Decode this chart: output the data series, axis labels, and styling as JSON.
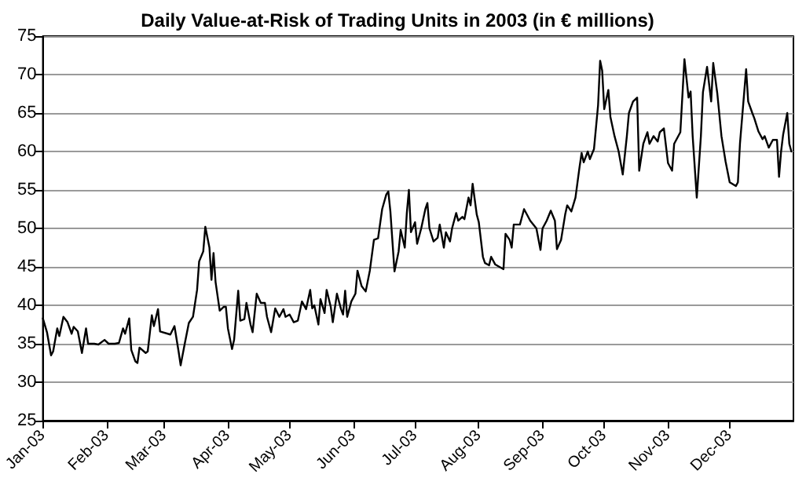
{
  "chart_data": {
    "type": "line",
    "title": "Daily Value-at-Risk of Trading Units in 2003 (in € millions)",
    "x": [
      "2003-01-01",
      "2003-01-03",
      "2003-01-05",
      "2003-01-06",
      "2003-01-08",
      "2003-01-09",
      "2003-01-11",
      "2003-01-13",
      "2003-01-15",
      "2003-01-16",
      "2003-01-18",
      "2003-01-20",
      "2003-01-22",
      "2003-01-23",
      "2003-01-26",
      "2003-01-28",
      "2003-01-31",
      "2003-02-02",
      "2003-02-05",
      "2003-02-07",
      "2003-02-09",
      "2003-02-10",
      "2003-02-12",
      "2003-02-13",
      "2003-02-15",
      "2003-02-16",
      "2003-02-17",
      "2003-02-20",
      "2003-02-21",
      "2003-02-23",
      "2003-02-24",
      "2003-02-26",
      "2003-02-27",
      "2003-03-04",
      "2003-03-06",
      "2003-03-08",
      "2003-03-09",
      "2003-03-11",
      "2003-03-13",
      "2003-03-15",
      "2003-03-17",
      "2003-03-18",
      "2003-03-20",
      "2003-03-21",
      "2003-03-23",
      "2003-03-24",
      "2003-03-25",
      "2003-03-26",
      "2003-03-28",
      "2003-03-30",
      "2003-03-31",
      "2003-04-01",
      "2003-04-03",
      "2003-04-04",
      "2003-04-06",
      "2003-04-07",
      "2003-04-09",
      "2003-04-10",
      "2003-04-12",
      "2003-04-13",
      "2003-04-15",
      "2003-04-17",
      "2003-04-19",
      "2003-04-20",
      "2003-04-22",
      "2003-04-24",
      "2003-04-26",
      "2003-04-28",
      "2003-04-29",
      "2003-05-01",
      "2003-05-03",
      "2003-05-05",
      "2003-05-07",
      "2003-05-09",
      "2003-05-11",
      "2003-05-12",
      "2003-05-13",
      "2003-05-15",
      "2003-05-16",
      "2003-05-18",
      "2003-05-19",
      "2003-05-21",
      "2003-05-22",
      "2003-05-24",
      "2003-05-26",
      "2003-05-27",
      "2003-05-28",
      "2003-05-29",
      "2003-05-31",
      "2003-06-02",
      "2003-06-03",
      "2003-06-05",
      "2003-06-07",
      "2003-06-09",
      "2003-06-11",
      "2003-06-13",
      "2003-06-15",
      "2003-06-17",
      "2003-06-18",
      "2003-06-19",
      "2003-06-21",
      "2003-06-23",
      "2003-06-24",
      "2003-06-26",
      "2003-06-27",
      "2003-06-28",
      "2003-06-29",
      "2003-07-01",
      "2003-07-02",
      "2003-07-04",
      "2003-07-06",
      "2003-07-07",
      "2003-07-08",
      "2003-07-10",
      "2003-07-12",
      "2003-07-13",
      "2003-07-15",
      "2003-07-16",
      "2003-07-18",
      "2003-07-19",
      "2003-07-21",
      "2003-07-22",
      "2003-07-24",
      "2003-07-25",
      "2003-07-27",
      "2003-07-28",
      "2003-07-29",
      "2003-07-31",
      "2003-08-01",
      "2003-08-03",
      "2003-08-04",
      "2003-08-06",
      "2003-08-07",
      "2003-08-09",
      "2003-08-11",
      "2003-08-13",
      "2003-08-14",
      "2003-08-16",
      "2003-08-17",
      "2003-08-18",
      "2003-08-21",
      "2003-08-23",
      "2003-08-25",
      "2003-08-26",
      "2003-08-29",
      "2003-08-31",
      "2003-09-01",
      "2003-09-03",
      "2003-09-05",
      "2003-09-07",
      "2003-09-08",
      "2003-09-10",
      "2003-09-12",
      "2003-09-13",
      "2003-09-15",
      "2003-09-17",
      "2003-09-19",
      "2003-09-20",
      "2003-09-21",
      "2003-09-23",
      "2003-09-24",
      "2003-09-26",
      "2003-09-28",
      "2003-09-29",
      "2003-09-30",
      "2003-10-01",
      "2003-10-03",
      "2003-10-04",
      "2003-10-06",
      "2003-10-08",
      "2003-10-10",
      "2003-10-12",
      "2003-10-13",
      "2003-10-15",
      "2003-10-17",
      "2003-10-18",
      "2003-10-20",
      "2003-10-22",
      "2003-10-23",
      "2003-10-25",
      "2003-10-27",
      "2003-10-28",
      "2003-10-30",
      "2003-11-01",
      "2003-11-03",
      "2003-11-04",
      "2003-11-07",
      "2003-11-09",
      "2003-11-11",
      "2003-11-12",
      "2003-11-13",
      "2003-11-15",
      "2003-11-17",
      "2003-11-18",
      "2003-11-20",
      "2003-11-22",
      "2003-11-23",
      "2003-11-25",
      "2003-11-27",
      "2003-11-29",
      "2003-12-01",
      "2003-12-04",
      "2003-12-05",
      "2003-12-06",
      "2003-12-09",
      "2003-12-10",
      "2003-12-12",
      "2003-12-13",
      "2003-12-15",
      "2003-12-17",
      "2003-12-18",
      "2003-12-20",
      "2003-12-22",
      "2003-12-24",
      "2003-12-25",
      "2003-12-26",
      "2003-12-27",
      "2003-12-29",
      "2003-12-30",
      "2003-12-31"
    ],
    "series": [
      {
        "color": "#000000",
        "values": [
          38.3,
          36.5,
          33.5,
          34,
          37,
          36,
          38.5,
          37.8,
          36.3,
          37.2,
          36.6,
          33.8,
          37,
          35,
          35,
          34.9,
          35.5,
          35,
          35,
          35.1,
          37,
          36.3,
          38.3,
          34.2,
          32.7,
          32.5,
          34.5,
          33.8,
          34,
          38.7,
          37.3,
          39.5,
          36.6,
          36.2,
          37.3,
          34,
          32.2,
          35,
          37.7,
          38.5,
          42,
          45.7,
          47,
          50.2,
          47.5,
          43.3,
          46.8,
          43,
          39.3,
          39.8,
          39.8,
          37,
          34.3,
          35.5,
          41.9,
          38,
          38.2,
          40.3,
          37.5,
          36.5,
          41.5,
          40.3,
          40.3,
          38.5,
          36.5,
          39.6,
          38.5,
          39.5,
          38.5,
          38.8,
          37.8,
          38,
          40.5,
          39.5,
          42,
          39.6,
          40,
          37.5,
          40.8,
          39,
          42,
          39.8,
          37.8,
          41.5,
          39.5,
          38.8,
          41.9,
          38.5,
          40.5,
          41.5,
          44.5,
          42.5,
          41.8,
          44.5,
          48.5,
          48.7,
          52.5,
          54.4,
          54.8,
          52.2,
          44.4,
          47,
          49.8,
          47.5,
          52,
          55,
          49.5,
          50.8,
          48,
          50,
          52.5,
          53.3,
          50,
          48.3,
          48.8,
          50.5,
          47.5,
          49.5,
          48.3,
          50,
          52,
          51,
          51.5,
          51.2,
          54,
          53,
          55.8,
          51.8,
          50.8,
          46.3,
          45.5,
          45.2,
          46.3,
          45.3,
          45,
          44.7,
          49.3,
          48.5,
          47.5,
          50.5,
          50.5,
          52.5,
          51.5,
          51,
          50,
          47.2,
          50,
          51,
          52.3,
          51,
          47.3,
          48.5,
          51.8,
          53,
          52.2,
          54,
          58,
          59.8,
          58.6,
          60,
          59,
          60.3,
          66,
          71.8,
          70.5,
          65.5,
          68,
          64.5,
          62,
          60,
          57,
          62,
          65,
          66.5,
          67,
          57.5,
          61,
          62.5,
          61,
          62,
          61.3,
          62.5,
          63,
          58.5,
          57.5,
          61,
          62.5,
          72,
          67,
          67.8,
          62,
          54,
          62,
          67.7,
          71,
          66.5,
          71.5,
          67.5,
          62,
          58.7,
          56,
          55.5,
          56,
          61,
          70.7,
          66.5,
          65,
          64.3,
          62.6,
          61.6,
          62,
          60.5,
          61.5,
          61.5,
          56.7,
          60,
          62.2,
          65,
          61,
          60
        ]
      }
    ],
    "xlim": [
      "2003-01-01",
      "2004-01-01"
    ],
    "xticks": [
      {
        "value": "2003-01-01",
        "label": "Jan-03"
      },
      {
        "value": "2003-02-01",
        "label": "Feb-03"
      },
      {
        "value": "2003-03-01",
        "label": "Mar-03"
      },
      {
        "value": "2003-04-01",
        "label": "Apr-03"
      },
      {
        "value": "2003-05-01",
        "label": "May-03"
      },
      {
        "value": "2003-06-01",
        "label": "Jun-03"
      },
      {
        "value": "2003-07-01",
        "label": "Jul-03"
      },
      {
        "value": "2003-08-01",
        "label": "Aug-03"
      },
      {
        "value": "2003-09-01",
        "label": "Sep-03"
      },
      {
        "value": "2003-10-01",
        "label": "Oct-03"
      },
      {
        "value": "2003-11-01",
        "label": "Nov-03"
      },
      {
        "value": "2003-12-01",
        "label": "Dec-03"
      }
    ],
    "ylim": [
      25,
      75
    ],
    "yticks": [
      25,
      30,
      35,
      40,
      45,
      50,
      55,
      60,
      65,
      70,
      75
    ],
    "grid": "y",
    "marker": "none",
    "line_style": "solid"
  }
}
